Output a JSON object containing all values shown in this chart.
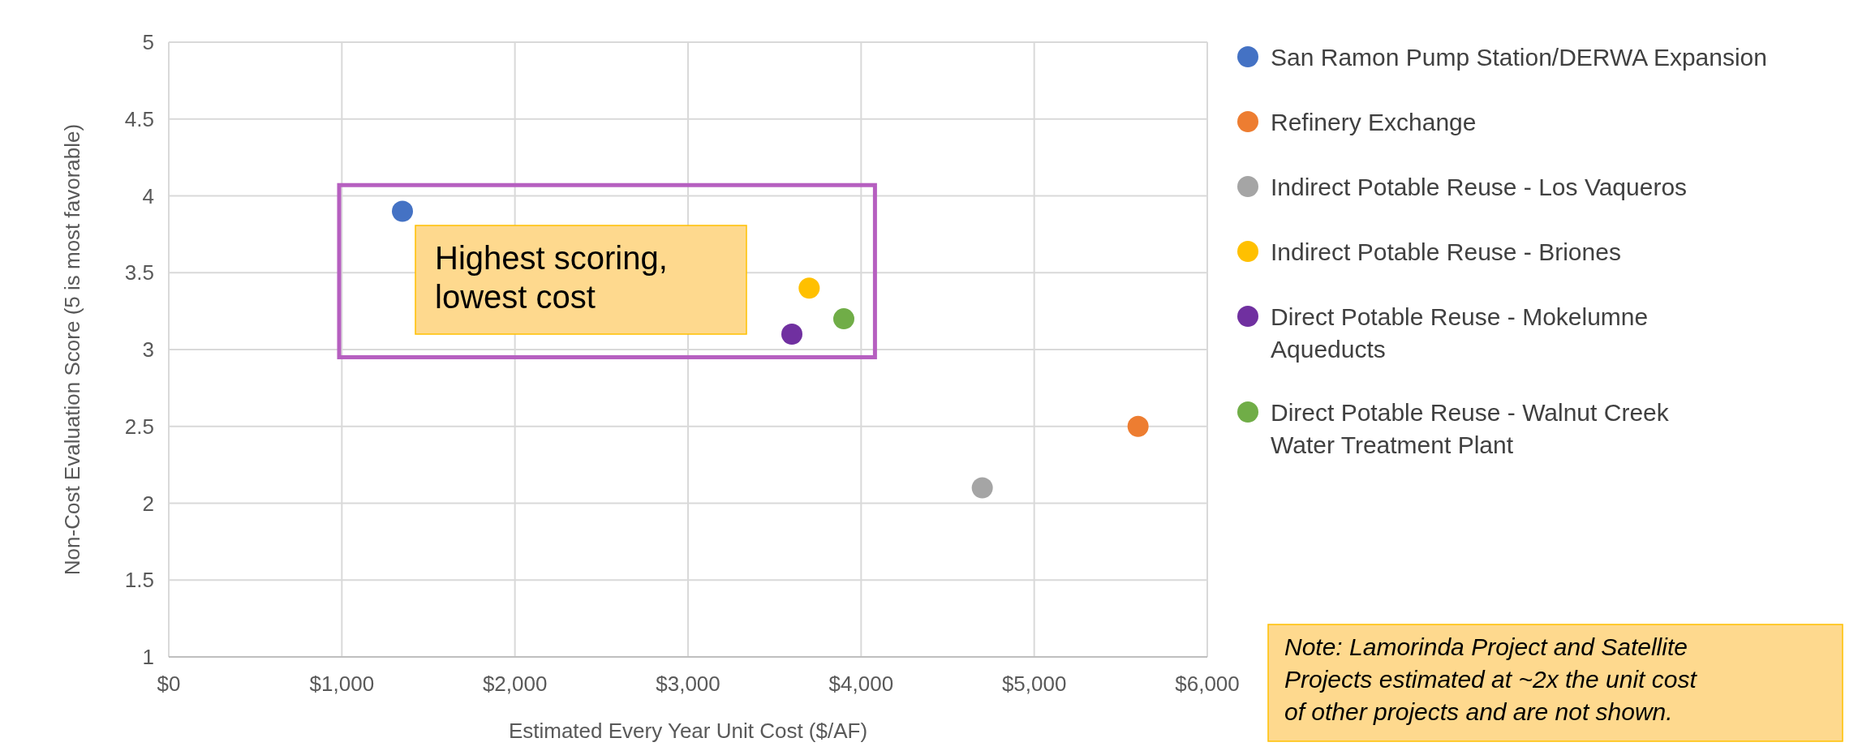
{
  "chart_data": {
    "type": "scatter",
    "xlabel": "Estimated Every Year Unit Cost ($/AF)",
    "ylabel": "Non-Cost Evaluation Score (5 is most favorable)",
    "xlim": [
      0,
      6000
    ],
    "xticks": [
      {
        "value": 0,
        "label": "$0"
      },
      {
        "value": 1000,
        "label": "$1,000"
      },
      {
        "value": 2000,
        "label": "$2,000"
      },
      {
        "value": 3000,
        "label": "$3,000"
      },
      {
        "value": 4000,
        "label": "$4,000"
      },
      {
        "value": 5000,
        "label": "$5,000"
      },
      {
        "value": 6000,
        "label": "$6,000"
      }
    ],
    "ylim": [
      1,
      5
    ],
    "yticks": [
      1,
      1.5,
      2,
      2.5,
      3,
      3.5,
      4,
      4.5,
      5
    ],
    "grid": true,
    "legend": "right",
    "marker": "circle",
    "series": [
      {
        "name": "San Ramon Pump Station/DERWA Expansion",
        "color": "#4472c4",
        "x": [
          1350
        ],
        "values": [
          3.9
        ]
      },
      {
        "name": "Refinery Exchange",
        "color": "#ed7d31",
        "x": [
          5600
        ],
        "values": [
          2.5
        ]
      },
      {
        "name": "Indirect Potable Reuse - Los Vaqueros",
        "color": "#a5a5a5",
        "x": [
          4700
        ],
        "values": [
          2.1
        ]
      },
      {
        "name": "Indirect Potable Reuse - Briones",
        "color": "#ffc000",
        "x": [
          3700
        ],
        "values": [
          3.4
        ]
      },
      {
        "name": "Direct Potable Reuse - Mokelumne Aqueducts",
        "color": "#7030a0",
        "x": [
          3600
        ],
        "values": [
          3.1
        ]
      },
      {
        "name": "Direct Potable Reuse - Walnut Creek Water Treatment Plant",
        "color": "#70ad47",
        "x": [
          3900
        ],
        "values": [
          3.2
        ]
      }
    ],
    "annotations": [
      "Highest scoring, lowest cost",
      "Note: Lamorinda Project and Satellite Projects estimated at ~2x the unit cost of other projects and are not shown."
    ]
  }
}
